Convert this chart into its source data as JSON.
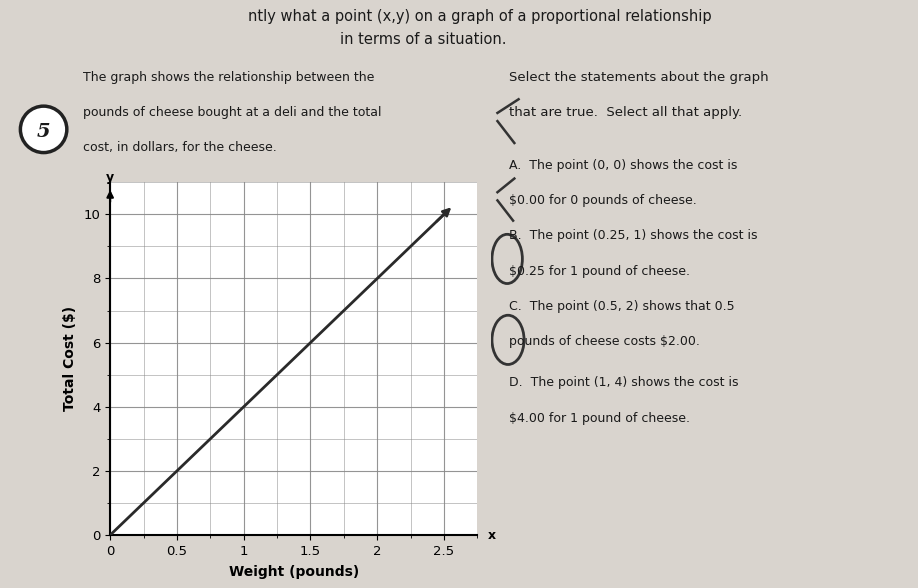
{
  "xlabel": "Weight (pounds)",
  "ylabel": "Total Cost ($)",
  "xlim": [
    0,
    2.75
  ],
  "ylim": [
    0,
    11.0
  ],
  "xticks": [
    0,
    0.5,
    1,
    1.5,
    2,
    2.5
  ],
  "yticks": [
    0,
    2,
    4,
    6,
    8,
    10
  ],
  "xtick_labels": [
    "0",
    "0.5",
    "1",
    "1.5",
    "2",
    "2.5"
  ],
  "ytick_labels": [
    "0",
    "2",
    "4",
    "6",
    "8",
    "10"
  ],
  "line_x": [
    0,
    2.5
  ],
  "line_y": [
    0,
    10
  ],
  "line_color": "#2a2a2a",
  "grid_color": "#888888",
  "plot_bg": "#ffffff",
  "fig_bg": "#d9d4ce",
  "problem_text_line1": "The graph shows the relationship between the",
  "problem_text_line2": "pounds of cheese bought at a deli and the total",
  "problem_text_line3": "cost, in dollars, for the cheese.",
  "top_text_line1": "ntly what a point (x,y) on a graph of a proportional relationship",
  "top_text_line2": "in terms of a situation.",
  "select_title_line1": "Select the statements about the graph",
  "select_title_line2": "that are true.  Select all that apply.",
  "stmt_A_1": "A.  The point (0, 0) shows the cost is",
  "stmt_A_2": "$0.00 for 0 pounds of cheese.",
  "stmt_B_1": "B.  The point (0.25, 1) shows the cost is",
  "stmt_B_2": "$0.25 for 1 pound of cheese.",
  "stmt_C_1": "C.  The point (0.5, 2) shows that 0.5",
  "stmt_C_2": "pounds of cheese costs $2.00.",
  "stmt_D_1": "D.  The point (1, 4) shows the cost is",
  "stmt_D_2": "$4.00 for 1 pound of cheese.",
  "number_label": "5",
  "text_color": "#1a1a1a"
}
